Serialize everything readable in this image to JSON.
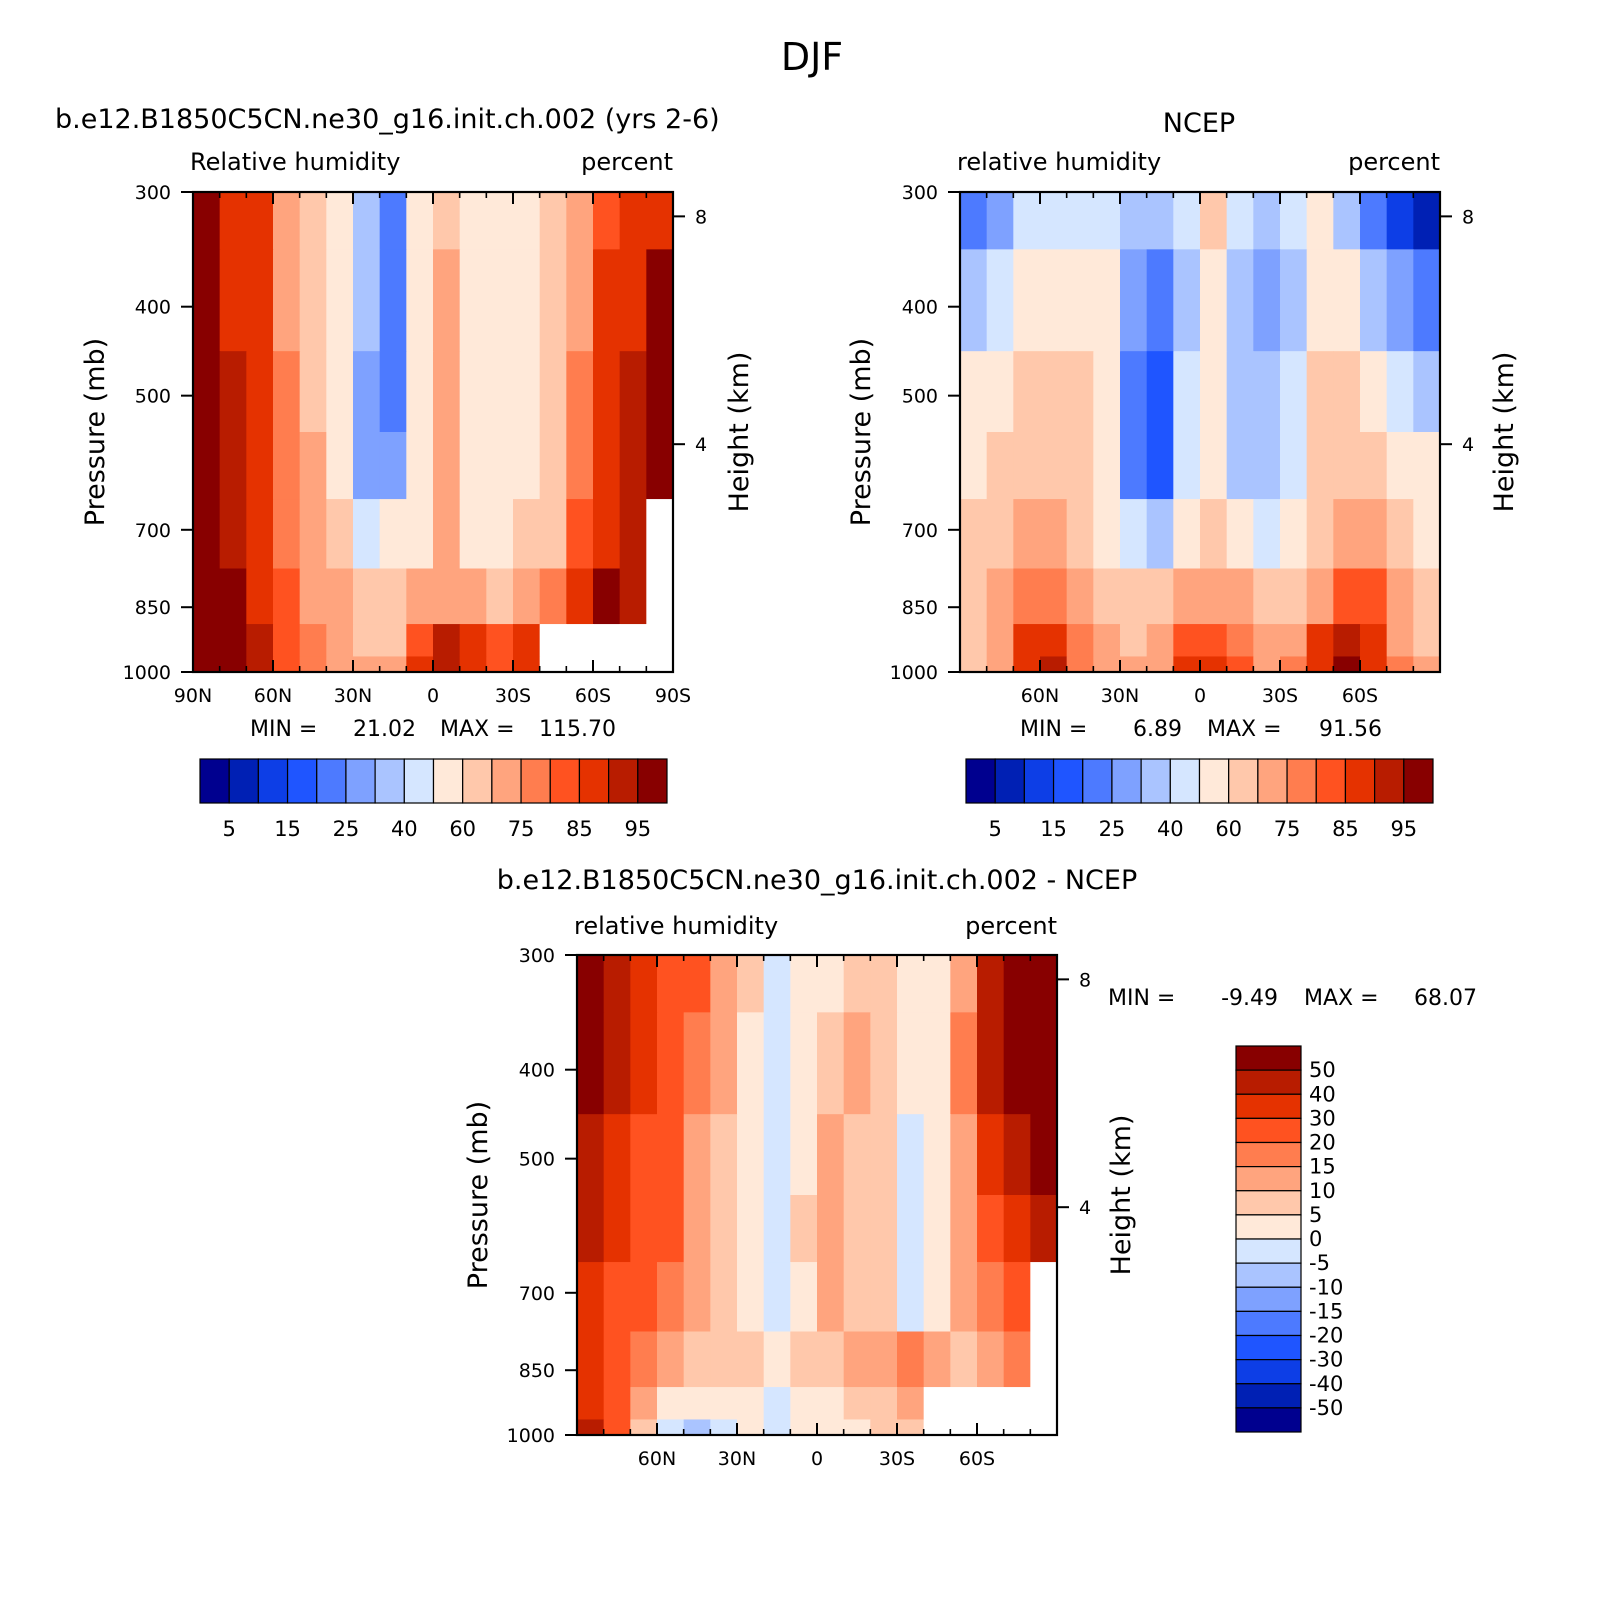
{
  "main_title": "DJF",
  "panels": [
    {
      "title": "b.e12.B1850C5CN.ne30_g16.init.ch.002 (yrs 2-6)",
      "left_label": "Relative humidity",
      "right_label": "percent",
      "y_axis_label": "Pressure (mb)",
      "y2_axis_label": "Height (km)",
      "y_ticks": [
        "300",
        "400",
        "500",
        "700",
        "850",
        "1000"
      ],
      "y2_ticks": [
        "8",
        "4"
      ],
      "x_ticks": [
        "90N",
        "60N",
        "30N",
        "0",
        "30S",
        "60S",
        "90S"
      ],
      "min_label": "MIN =",
      "min_value": "21.02",
      "max_label": "MAX =",
      "max_value": "115.70",
      "colorbar_labels": [
        "5",
        "15",
        "25",
        "40",
        "60",
        "75",
        "85",
        "95"
      ]
    },
    {
      "title": "NCEP",
      "left_label": "relative humidity",
      "right_label": "percent",
      "y_axis_label": "Pressure (mb)",
      "y2_axis_label": "Height (km)",
      "y_ticks": [
        "300",
        "400",
        "500",
        "700",
        "850",
        "1000"
      ],
      "y2_ticks": [
        "8",
        "4"
      ],
      "x_ticks": [
        "60N",
        "30N",
        "0",
        "30S",
        "60S"
      ],
      "min_label": "MIN =",
      "min_value": "6.89",
      "max_label": "MAX =",
      "max_value": "91.56",
      "colorbar_labels": [
        "5",
        "15",
        "25",
        "40",
        "60",
        "75",
        "85",
        "95"
      ]
    },
    {
      "title": "b.e12.B1850C5CN.ne30_g16.init.ch.002 - NCEP",
      "left_label": "relative humidity",
      "right_label": "percent",
      "y_axis_label": "Pressure (mb)",
      "y2_axis_label": "Height (km)",
      "y_ticks": [
        "300",
        "400",
        "500",
        "700",
        "850",
        "1000"
      ],
      "y2_ticks": [
        "8",
        "4"
      ],
      "x_ticks": [
        "60N",
        "30N",
        "0",
        "30S",
        "60S"
      ],
      "min_label": "MIN =",
      "min_value": "-9.49",
      "max_label": "MAX =",
      "max_value": "68.07",
      "colorbar_labels": [
        "50",
        "40",
        "30",
        "20",
        "15",
        "10",
        "5",
        "0",
        "-5",
        "-10",
        "-15",
        "-20",
        "-30",
        "-40",
        "-50"
      ]
    }
  ],
  "chart_data": [
    {
      "type": "heatmap",
      "title": "b.e12.B1850C5CN.ne30_g16.init.ch.002 (yrs 2-6)",
      "field": "Relative humidity",
      "units": "percent",
      "x_ticks": [
        "90N",
        "60N",
        "30N",
        "0",
        "30S",
        "60S",
        "90S"
      ],
      "x_tick_values": [
        90,
        60,
        30,
        0,
        -30,
        -60,
        -90
      ],
      "y_ticks": [
        300,
        400,
        500,
        700,
        850,
        1000
      ],
      "y_scale": "log",
      "xlim": [
        90,
        -90
      ],
      "ylim": [
        300,
        1000
      ],
      "x": [
        85,
        75,
        65,
        55,
        45,
        35,
        25,
        15,
        5,
        -5,
        -15,
        -25,
        -35,
        -45,
        -55,
        -65,
        -75,
        -85
      ],
      "y": [
        300,
        400,
        500,
        600,
        700,
        850,
        925,
        1000
      ],
      "values": [
        [
          92,
          84,
          80,
          66,
          55,
          45,
          32,
          20,
          46,
          50,
          45,
          42,
          46,
          54,
          64,
          78,
          82,
          82
        ],
        [
          92,
          84,
          80,
          68,
          56,
          44,
          30,
          20,
          40,
          60,
          45,
          40,
          44,
          54,
          68,
          80,
          84,
          90
        ],
        [
          92,
          85,
          80,
          70,
          58,
          44,
          26,
          24,
          44,
          60,
          42,
          40,
          44,
          54,
          70,
          80,
          86,
          92
        ],
        [
          91,
          86,
          80,
          70,
          60,
          46,
          28,
          26,
          46,
          60,
          42,
          40,
          46,
          56,
          72,
          82,
          86,
          96
        ],
        [
          91,
          86,
          82,
          72,
          62,
          50,
          38,
          40,
          48,
          62,
          48,
          44,
          50,
          58,
          76,
          84,
          86,
          null
        ],
        [
          94,
          90,
          84,
          76,
          68,
          60,
          56,
          52,
          66,
          68,
          62,
          58,
          62,
          70,
          84,
          92,
          86,
          null
        ],
        [
          96,
          92,
          86,
          78,
          70,
          62,
          58,
          56,
          78,
          86,
          80,
          76,
          80,
          null,
          null,
          null,
          null,
          null
        ],
        [
          98,
          95,
          86,
          78,
          70,
          64,
          60,
          62,
          80,
          86,
          82,
          76,
          80,
          null,
          null,
          null,
          null,
          null
        ]
      ],
      "levels": [
        5,
        10,
        15,
        20,
        25,
        30,
        35,
        40,
        50,
        60,
        70,
        75,
        80,
        85,
        90,
        95
      ],
      "colors": [
        "#00008f",
        "#0020b4",
        "#0d3ee6",
        "#1f55ff",
        "#4d7aff",
        "#7ea1ff",
        "#aac4ff",
        "#d5e6ff",
        "#ffe9d9",
        "#ffc8ab",
        "#ffa47e",
        "#ff7d4f",
        "#ff5220",
        "#e53200",
        "#b81c00",
        "#880000"
      ],
      "min": 21.02,
      "max": 115.7,
      "grid": false
    },
    {
      "type": "heatmap",
      "title": "NCEP",
      "field": "relative humidity",
      "units": "percent",
      "x_ticks": [
        "60N",
        "30N",
        "0",
        "30S",
        "60S"
      ],
      "x_tick_values": [
        60,
        30,
        0,
        -30,
        -60
      ],
      "y_ticks": [
        300,
        400,
        500,
        700,
        850,
        1000
      ],
      "y_scale": "log",
      "xlim": [
        90,
        -90
      ],
      "ylim": [
        300,
        1000
      ],
      "x": [
        85,
        75,
        65,
        55,
        45,
        35,
        25,
        15,
        5,
        -5,
        -15,
        -25,
        -35,
        -45,
        -55,
        -65,
        -75,
        -85
      ],
      "y": [
        300,
        400,
        500,
        600,
        700,
        850,
        925,
        1000
      ],
      "values": [
        [
          22,
          28,
          36,
          38,
          36,
          36,
          32,
          30,
          38,
          52,
          36,
          32,
          36,
          42,
          32,
          20,
          10,
          8
        ],
        [
          30,
          36,
          40,
          44,
          44,
          42,
          28,
          20,
          34,
          42,
          30,
          28,
          34,
          48,
          46,
          34,
          26,
          22
        ],
        [
          40,
          46,
          50,
          52,
          50,
          42,
          24,
          16,
          36,
          42,
          32,
          30,
          38,
          50,
          52,
          44,
          38,
          34
        ],
        [
          48,
          52,
          56,
          56,
          52,
          40,
          22,
          16,
          36,
          46,
          32,
          30,
          36,
          50,
          58,
          52,
          44,
          40
        ],
        [
          54,
          58,
          60,
          62,
          58,
          48,
          36,
          34,
          44,
          50,
          42,
          38,
          42,
          52,
          66,
          64,
          56,
          46
        ],
        [
          56,
          62,
          70,
          70,
          64,
          56,
          52,
          50,
          62,
          66,
          62,
          56,
          58,
          68,
          78,
          76,
          64,
          56
        ],
        [
          56,
          64,
          80,
          80,
          72,
          62,
          58,
          60,
          78,
          78,
          72,
          62,
          66,
          82,
          86,
          80,
          68,
          58
        ],
        [
          56,
          66,
          84,
          86,
          74,
          64,
          60,
          62,
          80,
          82,
          76,
          66,
          70,
          84,
          90,
          82,
          70,
          60
        ]
      ],
      "levels": [
        5,
        10,
        15,
        20,
        25,
        30,
        35,
        40,
        50,
        60,
        70,
        75,
        80,
        85,
        90,
        95
      ],
      "colors": [
        "#00008f",
        "#0020b4",
        "#0d3ee6",
        "#1f55ff",
        "#4d7aff",
        "#7ea1ff",
        "#aac4ff",
        "#d5e6ff",
        "#ffe9d9",
        "#ffc8ab",
        "#ffa47e",
        "#ff7d4f",
        "#ff5220",
        "#e53200",
        "#b81c00",
        "#880000"
      ],
      "min": 6.89,
      "max": 91.56,
      "grid": false
    },
    {
      "type": "heatmap",
      "title": "b.e12.B1850C5CN.ne30_g16.init.ch.002 - NCEP",
      "field": "relative humidity",
      "units": "percent",
      "x_ticks": [
        "60N",
        "30N",
        "0",
        "30S",
        "60S"
      ],
      "x_tick_values": [
        60,
        30,
        0,
        -30,
        -60
      ],
      "y_ticks": [
        300,
        400,
        500,
        700,
        850,
        1000
      ],
      "y_scale": "log",
      "xlim": [
        90,
        -90
      ],
      "ylim": [
        300,
        1000
      ],
      "x": [
        85,
        75,
        65,
        55,
        45,
        35,
        25,
        15,
        5,
        -5,
        -15,
        -25,
        -35,
        -45,
        -55,
        -65,
        -75,
        -85
      ],
      "y": [
        300,
        400,
        500,
        600,
        700,
        850,
        925,
        1000
      ],
      "values": [
        [
          62,
          44,
          34,
          28,
          22,
          14,
          8,
          -5,
          4,
          2,
          8,
          8,
          2,
          4,
          14,
          40,
          60,
          68
        ],
        [
          54,
          40,
          30,
          24,
          16,
          10,
          4,
          -4,
          2,
          6,
          10,
          6,
          2,
          4,
          16,
          42,
          56,
          62
        ],
        [
          46,
          34,
          28,
          22,
          14,
          8,
          2,
          -3,
          4,
          10,
          6,
          6,
          -2,
          0,
          12,
          30,
          44,
          56
        ],
        [
          40,
          32,
          26,
          20,
          14,
          8,
          2,
          -2,
          6,
          10,
          6,
          8,
          -4,
          2,
          10,
          22,
          30,
          40
        ],
        [
          34,
          28,
          24,
          18,
          12,
          8,
          2,
          -2,
          4,
          10,
          6,
          6,
          -4,
          2,
          10,
          18,
          26,
          null
        ],
        [
          30,
          22,
          16,
          10,
          8,
          6,
          6,
          4,
          6,
          6,
          10,
          12,
          16,
          12,
          8,
          12,
          16,
          null
        ],
        [
          34,
          22,
          10,
          2,
          0,
          2,
          0,
          -2,
          0,
          4,
          8,
          8,
          10,
          null,
          null,
          null,
          null,
          null
        ],
        [
          40,
          26,
          6,
          -2,
          -6,
          -4,
          2,
          -2,
          0,
          2,
          2,
          6,
          6,
          null,
          null,
          null,
          null,
          null
        ]
      ],
      "levels": [
        -50,
        -40,
        -30,
        -20,
        -15,
        -10,
        -5,
        0,
        5,
        10,
        15,
        20,
        30,
        40,
        50
      ],
      "colors": [
        "#00008f",
        "#0020b4",
        "#0d3ee6",
        "#1f55ff",
        "#4d7aff",
        "#7ea1ff",
        "#aac4ff",
        "#d5e6ff",
        "#ffe9d9",
        "#ffc8ab",
        "#ffa47e",
        "#ff7d4f",
        "#ff5220",
        "#e53200",
        "#b81c00",
        "#880000"
      ],
      "min": -9.49,
      "max": 68.07,
      "grid": false
    }
  ]
}
